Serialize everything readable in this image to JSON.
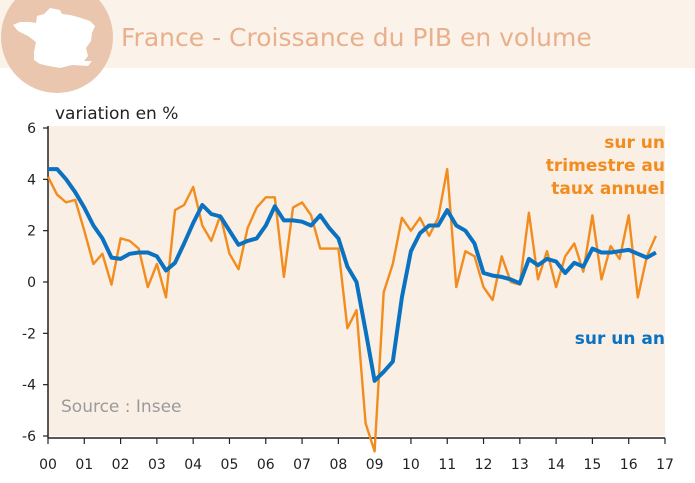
{
  "colors": {
    "header_bg": "#fbf3ea",
    "plot_bg": "#f9efe5",
    "title": "#e8b08c",
    "series_quarterly": "#f28c1e",
    "series_annual": "#0a72c0",
    "axis": "#222222",
    "map_fill": "#ffffff",
    "map_circle": "#e9c6ad"
  },
  "header": {
    "title": "France - Croissance du PIB en volume",
    "map_icon": "france-map-icon"
  },
  "chart_data": {
    "type": "line",
    "title": "France - Croissance du PIB en volume",
    "ylabel": "variation en %",
    "xlabel": "",
    "source": "Source : Insee",
    "ylim": [
      -6,
      6
    ],
    "xlim": [
      0,
      17
    ],
    "y_ticks": [
      "6",
      "4",
      "2",
      "0",
      "-2",
      "-4",
      "-6"
    ],
    "y_tick_values": [
      6,
      4,
      2,
      0,
      -2,
      -4,
      -6
    ],
    "x_ticks": [
      "00",
      "01",
      "02",
      "03",
      "04",
      "05",
      "06",
      "07",
      "08",
      "09",
      "10",
      "11",
      "12",
      "13",
      "14",
      "15",
      "16",
      "17"
    ],
    "series": [
      {
        "name": "sur un trimestre au taux annuel",
        "label_lines": [
          "sur un",
          "trimestre au",
          "taux annuel"
        ],
        "x": [
          0,
          0.25,
          0.5,
          0.75,
          1,
          1.25,
          1.5,
          1.75,
          2,
          2.25,
          2.5,
          2.75,
          3,
          3.25,
          3.5,
          3.75,
          4,
          4.25,
          4.5,
          4.75,
          5,
          5.25,
          5.5,
          5.75,
          6,
          6.25,
          6.5,
          6.75,
          7,
          7.25,
          7.5,
          7.75,
          8,
          8.25,
          8.5,
          8.75,
          9,
          9.25,
          9.5,
          9.75,
          10,
          10.25,
          10.5,
          10.75,
          11,
          11.25,
          11.5,
          11.75,
          12,
          12.25,
          12.5,
          12.75,
          13,
          13.25,
          13.5,
          13.75,
          14,
          14.25,
          14.5,
          14.75,
          15,
          15.25,
          15.5,
          15.75,
          16,
          16.25,
          16.5,
          16.75
        ],
        "values": [
          4.1,
          3.4,
          3.1,
          3.2,
          2.0,
          0.7,
          1.1,
          -0.1,
          1.7,
          1.6,
          1.3,
          -0.2,
          0.7,
          -0.6,
          2.8,
          3.0,
          3.7,
          2.2,
          1.6,
          2.6,
          1.1,
          0.5,
          2.1,
          2.9,
          3.3,
          3.3,
          0.2,
          2.9,
          3.1,
          2.6,
          1.3,
          1.3,
          1.3,
          -1.8,
          -1.1,
          -5.5,
          -6.6,
          -0.4,
          0.7,
          2.5,
          2.0,
          2.5,
          1.8,
          2.5,
          4.4,
          -0.2,
          1.2,
          1.0,
          -0.2,
          -0.7,
          1.0,
          0.0,
          -0.1,
          2.7,
          0.1,
          1.2,
          -0.2,
          1.0,
          1.5,
          0.4,
          2.6,
          0.1,
          1.4,
          0.9,
          2.6,
          -0.6,
          1.0,
          1.8
        ]
      },
      {
        "name": "sur un an",
        "label_lines": [
          "sur un an"
        ],
        "x": [
          0,
          0.25,
          0.5,
          0.75,
          1,
          1.25,
          1.5,
          1.75,
          2,
          2.25,
          2.5,
          2.75,
          3,
          3.25,
          3.5,
          3.75,
          4,
          4.25,
          4.5,
          4.75,
          5,
          5.25,
          5.5,
          5.75,
          6,
          6.25,
          6.5,
          6.75,
          7,
          7.25,
          7.5,
          7.75,
          8,
          8.25,
          8.5,
          8.75,
          9,
          9.25,
          9.5,
          9.75,
          10,
          10.25,
          10.5,
          10.75,
          11,
          11.25,
          11.5,
          11.75,
          12,
          12.25,
          12.5,
          12.75,
          13,
          13.25,
          13.5,
          13.75,
          14,
          14.25,
          14.5,
          14.75,
          15,
          15.25,
          15.5,
          15.75,
          16,
          16.25,
          16.5,
          16.75
        ],
        "values": [
          4.4,
          4.4,
          4.0,
          3.5,
          2.9,
          2.2,
          1.7,
          0.95,
          0.9,
          1.1,
          1.15,
          1.15,
          1.0,
          0.45,
          0.75,
          1.5,
          2.3,
          3.0,
          2.65,
          2.55,
          2.0,
          1.45,
          1.6,
          1.7,
          2.2,
          2.95,
          2.4,
          2.4,
          2.35,
          2.2,
          2.6,
          2.1,
          1.7,
          0.6,
          0.0,
          -1.9,
          -3.85,
          -3.5,
          -3.1,
          -0.6,
          1.2,
          1.9,
          2.2,
          2.2,
          2.8,
          2.2,
          2.0,
          1.5,
          0.35,
          0.25,
          0.2,
          0.1,
          -0.05,
          0.9,
          0.65,
          0.9,
          0.8,
          0.35,
          0.75,
          0.6,
          1.3,
          1.15,
          1.15,
          1.2,
          1.25,
          1.1,
          0.95,
          1.15
        ]
      }
    ]
  }
}
